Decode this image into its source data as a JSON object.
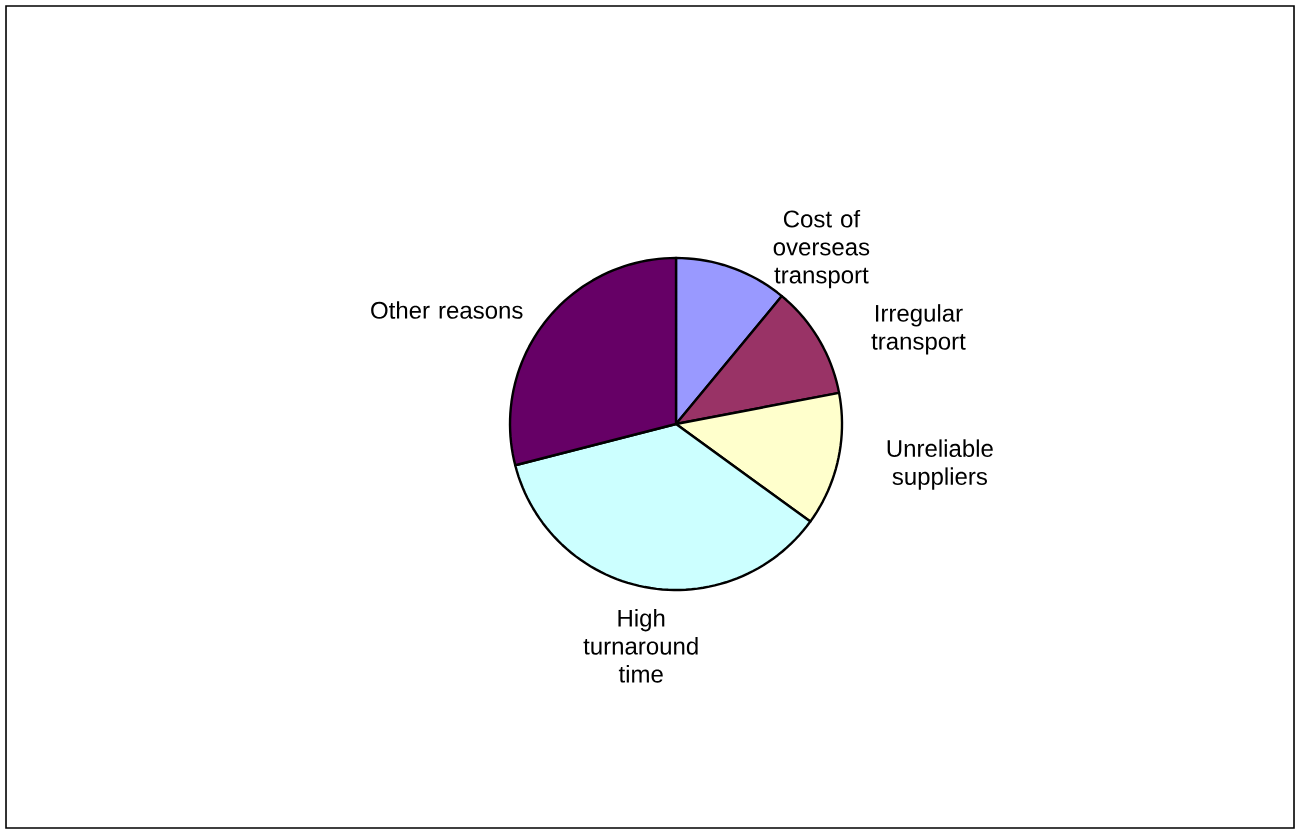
{
  "chart_data": {
    "type": "pie",
    "categories": [
      "Cost of overseas transport",
      "Irregular transport",
      "Unreliable suppliers",
      "High turnaround time",
      "Other reasons"
    ],
    "values": [
      11,
      11,
      13,
      36,
      29
    ],
    "colors": [
      "#9999ff",
      "#993366",
      "#ffffcc",
      "#ccffff",
      "#660066"
    ]
  }
}
